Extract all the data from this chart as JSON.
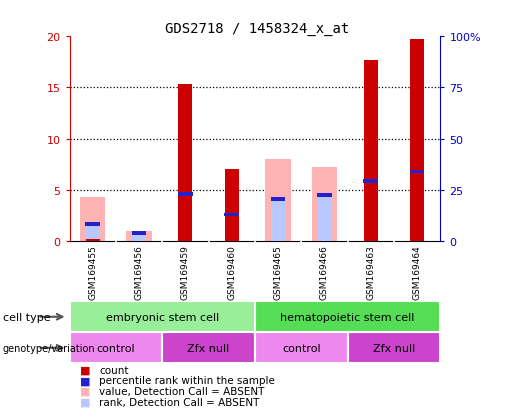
{
  "title": "GDS2718 / 1458324_x_at",
  "samples": [
    "GSM169455",
    "GSM169456",
    "GSM169459",
    "GSM169460",
    "GSM169465",
    "GSM169466",
    "GSM169463",
    "GSM169464"
  ],
  "count_values": [
    0.25,
    0,
    15.3,
    7.0,
    0,
    0,
    17.7,
    19.7
  ],
  "percentile_values": [
    1.7,
    0.8,
    4.6,
    2.6,
    4.1,
    4.5,
    5.9,
    6.8
  ],
  "value_absent": [
    4.3,
    1.0,
    0,
    0,
    8.0,
    7.2,
    0,
    0
  ],
  "rank_absent": [
    1.7,
    0.8,
    0,
    0,
    4.1,
    4.5,
    0,
    0
  ],
  "colors": {
    "count": "#cc0000",
    "percentile": "#2222cc",
    "value_absent": "#ffb3b3",
    "rank_absent": "#b8c8ff",
    "bg_plot": "#ffffff",
    "bg_samples": "#d0d0d0",
    "left_axis_color": "#cc0000",
    "right_axis_color": "#0000cc"
  },
  "cell_type_groups": [
    {
      "label": "embryonic stem cell",
      "start": 0,
      "end": 4,
      "color": "#99ee99"
    },
    {
      "label": "hematopoietic stem cell",
      "start": 4,
      "end": 8,
      "color": "#55dd55"
    }
  ],
  "genotype_groups": [
    {
      "label": "control",
      "start": 0,
      "end": 2,
      "color": "#ee88ee"
    },
    {
      "label": "Zfx null",
      "start": 2,
      "end": 4,
      "color": "#cc44cc"
    },
    {
      "label": "control",
      "start": 4,
      "end": 6,
      "color": "#ee88ee"
    },
    {
      "label": "Zfx null",
      "start": 6,
      "end": 8,
      "color": "#cc44cc"
    }
  ],
  "ylim_left": [
    0,
    20
  ],
  "ylim_right": [
    0,
    100
  ],
  "yticks_left": [
    0,
    5,
    10,
    15,
    20
  ],
  "yticks_right": [
    0,
    25,
    50,
    75,
    100
  ],
  "legend_items": [
    {
      "color": "#cc0000",
      "label": "count"
    },
    {
      "color": "#2222cc",
      "label": "percentile rank within the sample"
    },
    {
      "color": "#ffb3b3",
      "label": "value, Detection Call = ABSENT"
    },
    {
      "color": "#b8c8ff",
      "label": "rank, Detection Call = ABSENT"
    }
  ],
  "bar_width": 0.55,
  "percentile_bar_width": 0.45,
  "percentile_bar_height": 0.35
}
